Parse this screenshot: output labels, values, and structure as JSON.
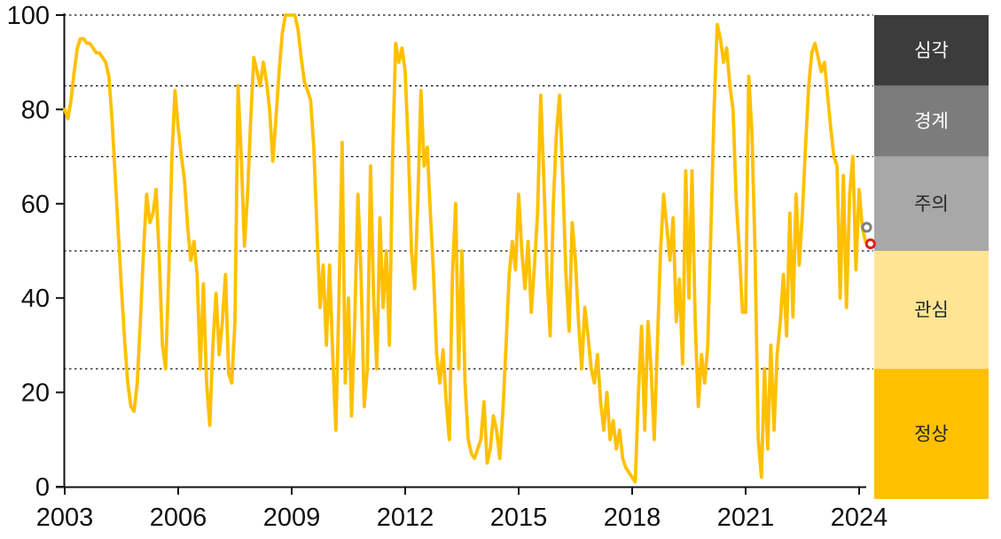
{
  "chart_data": {
    "type": "line",
    "title": "",
    "xlabel": "",
    "ylabel": "",
    "ylim": [
      0,
      100
    ],
    "xlim": [
      2003,
      2024.35
    ],
    "grid_on": true,
    "gridline_values": [
      100,
      85,
      70,
      50,
      25
    ],
    "y_ticks": [
      0,
      20,
      40,
      60,
      80,
      100
    ],
    "x_ticks": [
      2003,
      2006,
      2009,
      2012,
      2015,
      2018,
      2021,
      2024
    ],
    "series": [
      {
        "name": "index-line",
        "color": "#FFC000",
        "x_start": 2003.0,
        "x_step_years": 0.08333,
        "values": [
          80,
          78,
          82,
          88,
          93,
          95,
          95,
          94,
          94,
          93,
          92,
          92,
          91,
          90,
          87,
          78,
          66,
          54,
          42,
          31,
          22,
          17,
          16,
          22,
          35,
          50,
          62,
          56,
          58,
          63,
          48,
          30,
          25,
          45,
          70,
          84,
          76,
          70,
          65,
          55,
          48,
          52,
          45,
          25,
          43,
          22,
          13,
          30,
          41,
          28,
          35,
          45,
          24,
          22,
          35,
          85,
          70,
          51,
          62,
          78,
          91,
          88,
          85,
          90,
          86,
          80,
          69,
          78,
          88,
          96,
          100,
          100,
          100,
          100,
          97,
          91,
          86,
          84,
          82,
          72,
          55,
          38,
          47,
          30,
          47,
          28,
          12,
          40,
          73,
          22,
          40,
          15,
          35,
          62,
          45,
          17,
          25,
          68,
          40,
          25,
          57,
          38,
          50,
          30,
          70,
          94,
          90,
          93,
          88,
          72,
          50,
          42,
          60,
          84,
          68,
          72,
          58,
          45,
          28,
          22,
          29,
          18,
          10,
          45,
          60,
          25,
          50,
          22,
          10,
          7,
          6,
          8,
          10,
          18,
          5,
          8,
          15,
          12,
          6,
          16,
          30,
          45,
          52,
          46,
          62,
          50,
          42,
          52,
          37,
          47,
          58,
          83,
          65,
          45,
          32,
          60,
          75,
          83,
          65,
          45,
          33,
          56,
          48,
          35,
          25,
          38,
          32,
          25,
          22,
          28,
          18,
          12,
          20,
          10,
          14,
          8,
          12,
          6,
          4,
          3,
          2,
          1,
          20,
          34,
          12,
          35,
          25,
          10,
          30,
          50,
          62,
          55,
          48,
          57,
          35,
          44,
          26,
          67,
          40,
          67,
          35,
          17,
          28,
          22,
          30,
          55,
          80,
          98,
          95,
          90,
          93,
          85,
          80,
          61,
          50,
          37,
          37,
          87,
          75,
          50,
          10,
          2,
          25,
          8,
          30,
          12,
          28,
          35,
          45,
          32,
          58,
          36,
          62,
          47,
          58,
          72,
          85,
          92,
          94,
          91,
          88,
          90,
          83,
          76,
          70,
          68,
          40,
          66,
          38,
          62,
          70,
          46,
          63,
          55,
          52
        ]
      }
    ],
    "markers": [
      {
        "key": "previous",
        "x": 2024.2,
        "y": 55,
        "ring_color": "#7F7F7F",
        "fill": "#FFFFFF"
      },
      {
        "key": "latest",
        "x": 2024.3,
        "y": 51.5,
        "ring_color": "#DF1F1F",
        "fill": "#FFFFFF"
      }
    ],
    "zones": [
      {
        "key": "severe",
        "label": "심각",
        "from": 85,
        "to": 100,
        "color": "#3C3C3C",
        "text_color": "#FFFFFF"
      },
      {
        "key": "alert",
        "label": "경계",
        "from": 70,
        "to": 85,
        "color": "#7C7C7C",
        "text_color": "#FFFFFF"
      },
      {
        "key": "caution",
        "label": "주의",
        "from": 50,
        "to": 70,
        "color": "#A8A8A8",
        "text_color": "#262626"
      },
      {
        "key": "interest",
        "label": "관심",
        "from": 25,
        "to": 50,
        "color": "#FFE593",
        "text_color": "#262626"
      },
      {
        "key": "normal",
        "label": "정상",
        "from": -2.6,
        "to": 25,
        "color": "#FFC000",
        "text_color": "#262626"
      }
    ],
    "axis_color": "#111111",
    "gridline_color": "#111111",
    "tick_label_color": "#111111"
  }
}
